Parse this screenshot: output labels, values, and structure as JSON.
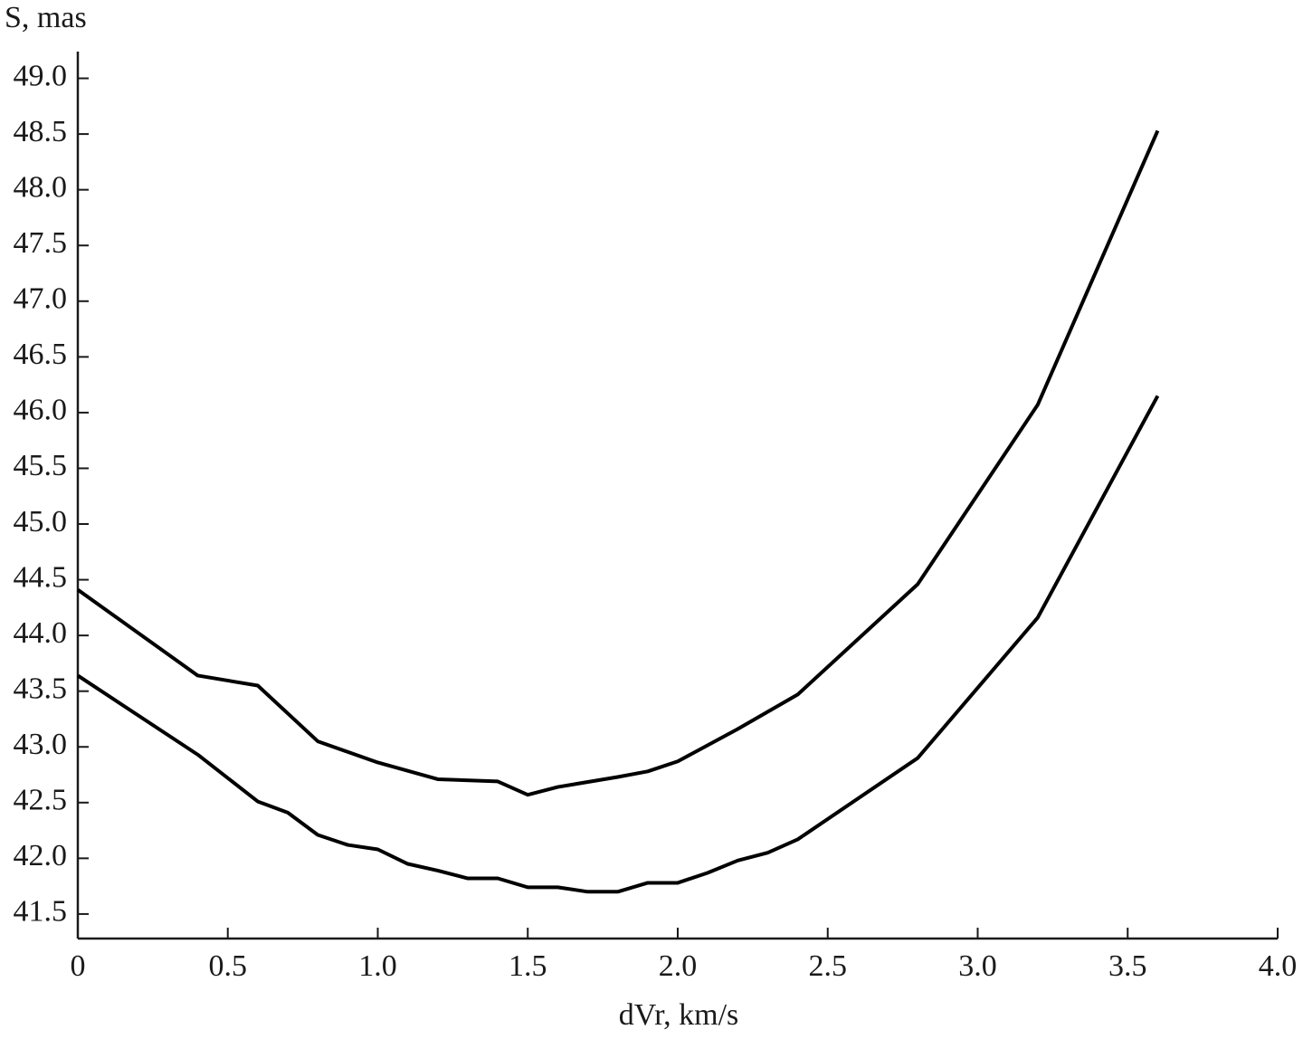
{
  "chart_data": {
    "type": "line",
    "x_label": "dVr, km/s",
    "y_label": "S, mas",
    "xlim": [
      0,
      4
    ],
    "ylim": [
      41.28,
      49.24
    ],
    "xticks": [
      0,
      0.5,
      {
        "value": 1,
        "label": "1.0"
      },
      1.5,
      {
        "value": 2,
        "label": "2.0"
      },
      2.5,
      {
        "value": 3,
        "label": "3.0"
      },
      3.5,
      {
        "value": 4,
        "label": "4.0"
      }
    ],
    "yticks": [
      41.5,
      {
        "value": 42,
        "label": "42.0"
      },
      42.5,
      {
        "value": 43,
        "label": "43.0"
      },
      43.5,
      {
        "value": 44,
        "label": "44.0"
      },
      44.5,
      {
        "value": 45,
        "label": "45.0"
      },
      45.5,
      {
        "value": 46,
        "label": "46.0"
      },
      46.5,
      {
        "value": 47,
        "label": "47.0"
      },
      47.5,
      {
        "value": 48,
        "label": "48.0"
      },
      48.5,
      {
        "value": 49,
        "label": "49.0"
      }
    ],
    "series": [
      {
        "color": "#000000",
        "x": [
          0,
          0.4,
          0.6,
          0.8,
          1.0,
          1.2,
          1.4,
          1.5,
          1.6,
          1.8,
          1.9,
          2.0,
          2.2,
          2.4,
          2.8,
          3.2,
          3.6
        ],
        "values": [
          44.41,
          43.64,
          43.55,
          43.05,
          42.86,
          42.71,
          42.69,
          42.57,
          42.64,
          42.73,
          42.78,
          42.87,
          43.16,
          43.47,
          44.46,
          46.07,
          48.53
        ]
      },
      {
        "color": "#000000",
        "x": [
          0,
          0.4,
          0.6,
          0.7,
          0.8,
          0.9,
          1.0,
          1.1,
          1.2,
          1.3,
          1.4,
          1.5,
          1.6,
          1.7,
          1.8,
          1.9,
          2.0,
          2.1,
          2.2,
          2.3,
          2.4,
          2.8,
          3.2,
          3.6
        ],
        "values": [
          43.64,
          42.93,
          42.51,
          42.41,
          42.21,
          42.12,
          42.08,
          41.95,
          41.89,
          41.82,
          41.82,
          41.74,
          41.74,
          41.7,
          41.7,
          41.78,
          41.78,
          41.87,
          41.98,
          42.05,
          42.17,
          42.9,
          44.16,
          46.15
        ]
      }
    ]
  }
}
